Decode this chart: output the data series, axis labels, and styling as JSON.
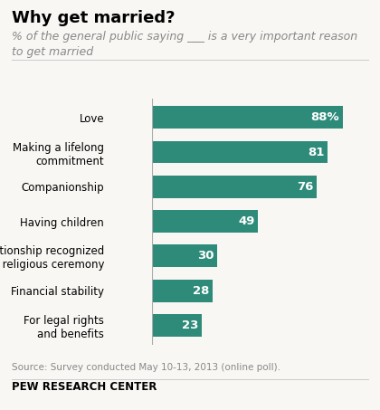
{
  "title": "Why get married?",
  "subtitle": "% of the general public saying ___ is a very important reason\nto get married",
  "categories": [
    "Love",
    "Making a lifelong\ncommitment",
    "Companionship",
    "Having children",
    "A relationship recognized\nin a religious ceremony",
    "Financial stability",
    "For legal rights\nand benefits"
  ],
  "values": [
    88,
    81,
    76,
    49,
    30,
    28,
    23
  ],
  "bar_color": "#2e8b7a",
  "value_labels": [
    "88%",
    "81",
    "76",
    "49",
    "30",
    "28",
    "23"
  ],
  "source": "Source: Survey conducted May 10-13, 2013 (online poll).",
  "footer": "PEW RESEARCH CENTER",
  "background_color": "#f9f7f4",
  "title_fontsize": 13,
  "subtitle_fontsize": 9,
  "label_fontsize": 8.5,
  "value_fontsize": 9.5
}
